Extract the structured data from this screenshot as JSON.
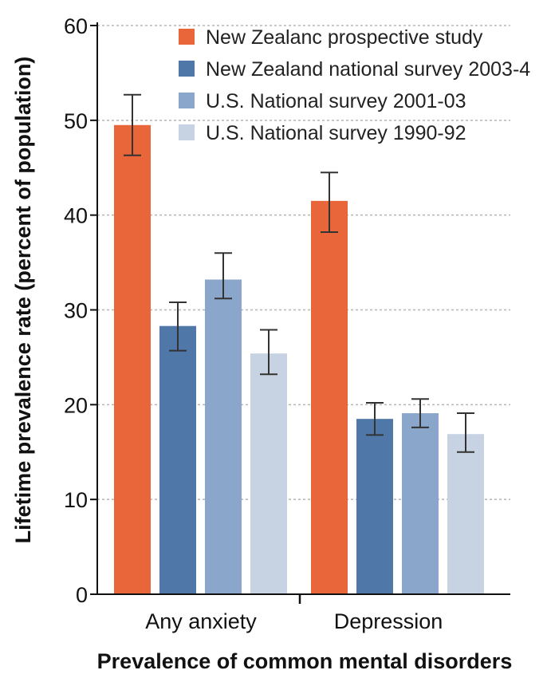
{
  "chart_data": {
    "type": "bar",
    "title": "",
    "xlabel": "Prevalence of common mental disorders",
    "ylabel": "Lifetime prevalence rate (percent of population)",
    "ylim": [
      0,
      60
    ],
    "yticks": [
      0,
      10,
      20,
      30,
      40,
      50,
      60
    ],
    "grid": true,
    "legend_position": "top-right",
    "categories": [
      "Any anxiety",
      "Depression"
    ],
    "series": [
      {
        "name": "New Zealanc prospective study",
        "color": "#e8663a",
        "values": [
          49.5,
          41.5
        ],
        "error": [
          [
            46.3,
            52.7
          ],
          [
            38.2,
            44.5
          ]
        ]
      },
      {
        "name": "New Zealand national survey 2003-4",
        "color": "#4f78a8",
        "values": [
          28.3,
          18.5
        ],
        "error": [
          [
            25.7,
            30.8
          ],
          [
            16.8,
            20.2
          ]
        ]
      },
      {
        "name": "U.S. National survey 2001-03",
        "color": "#8aa6cb",
        "values": [
          33.2,
          19.1
        ],
        "error": [
          [
            31.2,
            36.0
          ],
          [
            17.6,
            20.6
          ]
        ]
      },
      {
        "name": "U.S. National survey 1990-92",
        "color": "#c7d3e3",
        "values": [
          25.4,
          16.9
        ],
        "error": [
          [
            23.2,
            27.9
          ],
          [
            15.0,
            19.1
          ]
        ]
      }
    ]
  }
}
